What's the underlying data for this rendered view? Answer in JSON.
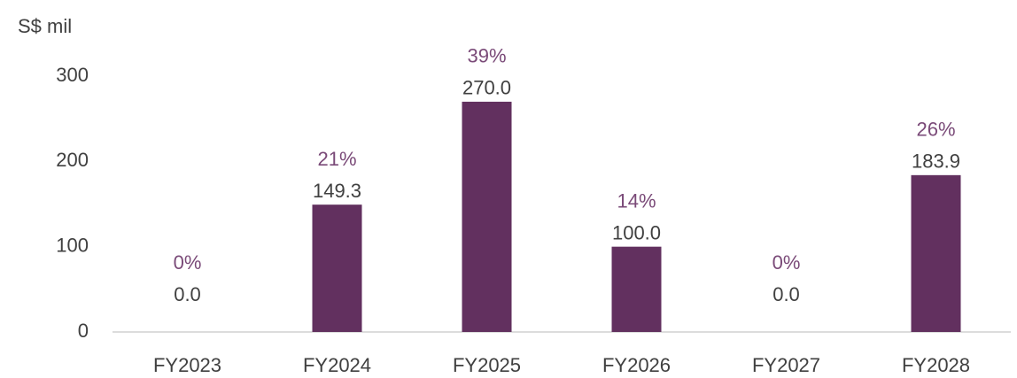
{
  "chart_data": {
    "type": "bar",
    "y_axis_label": "S$ mil",
    "categories": [
      "FY2023",
      "FY2024",
      "FY2025",
      "FY2026",
      "FY2027",
      "FY2028"
    ],
    "values": [
      0,
      149.3,
      270,
      100,
      0,
      183.9
    ],
    "value_labels": [
      "0.0",
      "149.3",
      "270.0",
      "100.0",
      "0.0",
      "183.9"
    ],
    "annotations": [
      "0%",
      "21%",
      "39%",
      "14%",
      "0%",
      "26%"
    ],
    "color": "#62305f",
    "ylim": [
      0,
      300
    ],
    "yticks": [
      0,
      100,
      200,
      300
    ],
    "grid": false
  }
}
